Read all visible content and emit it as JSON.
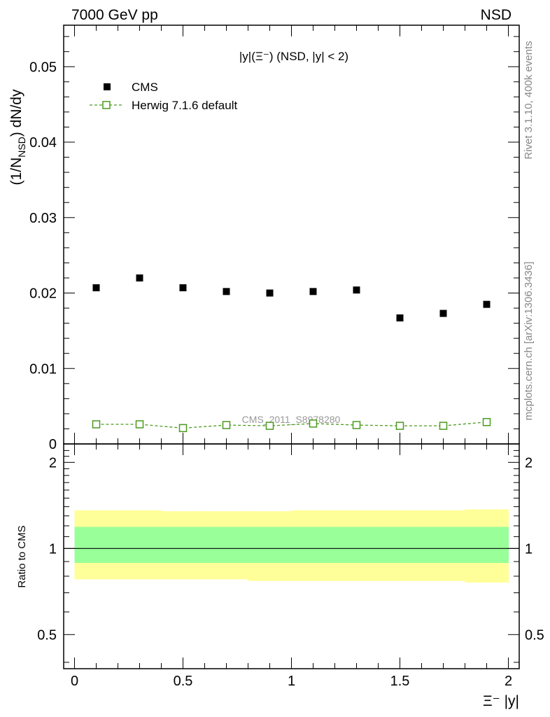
{
  "header": {
    "left_label": "7000 GeV pp",
    "right_label": "NSD"
  },
  "side_labels": {
    "rivet": "Rivet 3.1.10,  400k events",
    "mcplots": "mcplots.cern.ch [arXiv:1306.3436]"
  },
  "chart_data": [
    {
      "type": "scatter",
      "panel": "main",
      "title": "|y|(Ξ⁻) (NSD, |y| < 2)",
      "xlabel": "Ξ⁻ |y|",
      "ylabel": "(1/N_NSD) dN/dy",
      "ylabel_parts": {
        "a": "(1/N",
        "sub": "NSD",
        "b": ") dN/dy"
      },
      "xlim": [
        -0.05,
        2.05
      ],
      "ylim": [
        0,
        0.0555
      ],
      "yticks": [
        0,
        0.01,
        0.02,
        0.03,
        0.04,
        0.05
      ],
      "ytick_labels": [
        "0",
        "0.01",
        "0.02",
        "0.03",
        "0.04",
        "0.05"
      ],
      "watermark": "CMS_2011_S8978280",
      "legend_position": "top-left",
      "series": [
        {
          "name": "CMS",
          "marker": "filled-square",
          "color": "#000000",
          "x": [
            0.1,
            0.3,
            0.5,
            0.7,
            0.9,
            1.1,
            1.3,
            1.5,
            1.7,
            1.9
          ],
          "values": [
            0.0207,
            0.022,
            0.0207,
            0.0202,
            0.02,
            0.0202,
            0.0204,
            0.0167,
            0.0173,
            0.0185
          ]
        },
        {
          "name": "Herwig 7.1.6 default",
          "marker": "open-square",
          "line": "dashed",
          "color": "#4a9a1e",
          "x": [
            0.1,
            0.3,
            0.5,
            0.7,
            0.9,
            1.1,
            1.3,
            1.5,
            1.7,
            1.9
          ],
          "values": [
            0.0026,
            0.0026,
            0.0021,
            0.0025,
            0.0024,
            0.0027,
            0.0025,
            0.0024,
            0.0024,
            0.0029
          ]
        }
      ]
    },
    {
      "type": "area",
      "panel": "ratio",
      "xlabel": "Ξ⁻ |y|",
      "ylabel": "Ratio to CMS",
      "xlim": [
        -0.05,
        2.05
      ],
      "ylim": [
        0.38,
        2.32
      ],
      "xticks": [
        0,
        0.5,
        1,
        1.5,
        2
      ],
      "xtick_labels": [
        "0",
        "0.5",
        "1",
        "1.5",
        "2"
      ],
      "yticks": [
        0.5,
        1,
        2
      ],
      "ytick_labels": [
        "0.5",
        "1",
        "2"
      ],
      "reference_line": 1,
      "bands": [
        {
          "name": "total uncertainty",
          "color": "#ffff99",
          "x": [
            0,
            0.2,
            0.4,
            0.6,
            0.8,
            1.0,
            1.2,
            1.4,
            1.6,
            1.8,
            2.0
          ],
          "low": [
            0.78,
            0.78,
            0.78,
            0.78,
            0.77,
            0.77,
            0.77,
            0.77,
            0.77,
            0.76,
            0.76
          ],
          "high": [
            1.36,
            1.36,
            1.35,
            1.35,
            1.35,
            1.36,
            1.36,
            1.36,
            1.36,
            1.37,
            1.37
          ]
        },
        {
          "name": "stat uncertainty",
          "color": "#99ff99",
          "x": [
            0,
            0.2,
            0.4,
            0.6,
            0.8,
            1.0,
            1.2,
            1.4,
            1.6,
            1.8,
            2.0
          ],
          "low": [
            0.89,
            0.89,
            0.89,
            0.89,
            0.89,
            0.89,
            0.89,
            0.89,
            0.89,
            0.89,
            0.89
          ],
          "high": [
            1.19,
            1.19,
            1.19,
            1.19,
            1.19,
            1.19,
            1.19,
            1.19,
            1.19,
            1.19,
            1.19
          ]
        }
      ]
    }
  ]
}
